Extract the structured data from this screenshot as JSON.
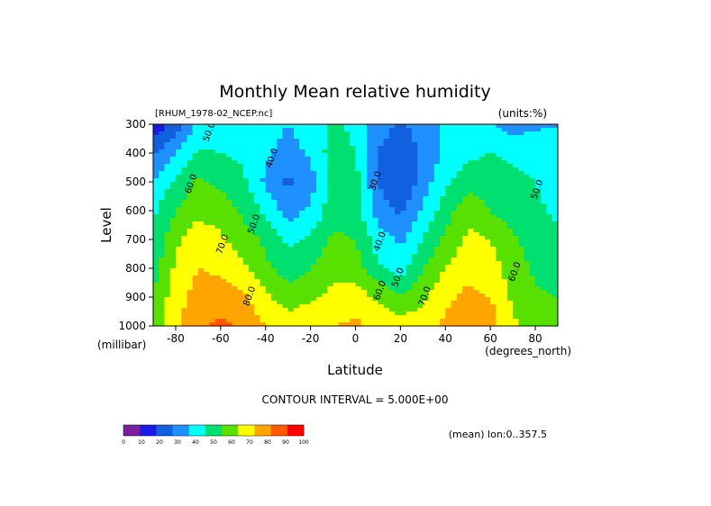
{
  "chart_data": {
    "type": "heatmap",
    "title": "Monthly Mean relative humidity",
    "dataset_label": "[RHUM_1978-02_NCEP.nc]",
    "units_label": "(units:%)",
    "xlabel": "Latitude",
    "x_units": "(degrees_north)",
    "ylabel": "Level",
    "y_units": "(millibar)",
    "xlim": [
      -90,
      90
    ],
    "ylim": [
      1000,
      300
    ],
    "x_ticks": [
      -80,
      -60,
      -40,
      -20,
      0,
      20,
      40,
      60,
      80
    ],
    "y_ticks": [
      300,
      400,
      500,
      600,
      700,
      800,
      900,
      1000
    ],
    "contour_interval_label": "CONTOUR INTERVAL = 5.000E+00",
    "footer_label": "(mean) lon:0..357.5",
    "colorbar": {
      "levels": [
        0,
        10,
        20,
        30,
        40,
        50,
        60,
        70,
        80,
        90,
        100
      ],
      "colors": [
        "#7b1fa2",
        "#1a1ae6",
        "#1060e0",
        "#1e90ff",
        "#00ffff",
        "#00e070",
        "#58e000",
        "#ffff00",
        "#ffa500",
        "#ff5a00",
        "#ff0000"
      ]
    },
    "lat": [
      -90,
      -80,
      -70,
      -60,
      -50,
      -40,
      -30,
      -20,
      -10,
      0,
      10,
      20,
      30,
      40,
      50,
      60,
      70,
      80,
      90
    ],
    "levels": [
      300,
      400,
      500,
      600,
      700,
      800,
      900,
      1000
    ],
    "values": [
      [
        12,
        25,
        42,
        45,
        48,
        45,
        40,
        45,
        52,
        48,
        35,
        28,
        35,
        42,
        45,
        40,
        35,
        38,
        40
      ],
      [
        28,
        40,
        52,
        50,
        48,
        42,
        35,
        42,
        55,
        50,
        30,
        22,
        32,
        42,
        48,
        50,
        48,
        48,
        42
      ],
      [
        40,
        52,
        62,
        58,
        52,
        38,
        28,
        35,
        55,
        55,
        30,
        20,
        35,
        48,
        55,
        55,
        52,
        50,
        45
      ],
      [
        48,
        60,
        68,
        65,
        58,
        48,
        35,
        42,
        56,
        55,
        35,
        28,
        42,
        55,
        68,
        60,
        55,
        52,
        48
      ],
      [
        52,
        68,
        75,
        72,
        65,
        58,
        48,
        52,
        62,
        60,
        45,
        38,
        50,
        62,
        72,
        70,
        62,
        55,
        52
      ],
      [
        55,
        72,
        80,
        78,
        72,
        62,
        55,
        60,
        68,
        65,
        52,
        45,
        60,
        70,
        78,
        75,
        65,
        58,
        55
      ],
      [
        62,
        75,
        85,
        85,
        82,
        72,
        65,
        68,
        72,
        75,
        68,
        62,
        68,
        78,
        82,
        80,
        68,
        62,
        60
      ],
      [
        65,
        78,
        88,
        92,
        88,
        80,
        75,
        78,
        80,
        82,
        78,
        75,
        75,
        82,
        88,
        85,
        72,
        65,
        62
      ]
    ],
    "contour_labels": [
      {
        "lat": -64,
        "level": 330,
        "text": "50.0"
      },
      {
        "lat": -72,
        "level": 510,
        "text": "60.0"
      },
      {
        "lat": -36,
        "level": 420,
        "text": "40.0"
      },
      {
        "lat": -44,
        "level": 650,
        "text": "50.0"
      },
      {
        "lat": -58,
        "level": 720,
        "text": "70.0"
      },
      {
        "lat": -46,
        "level": 900,
        "text": "80.0"
      },
      {
        "lat": 10,
        "level": 500,
        "text": "30.0"
      },
      {
        "lat": 12,
        "level": 710,
        "text": "40.0"
      },
      {
        "lat": 20,
        "level": 835,
        "text": "50.0"
      },
      {
        "lat": 12,
        "level": 880,
        "text": "60.0"
      },
      {
        "lat": 32,
        "level": 900,
        "text": "70.0"
      },
      {
        "lat": 72,
        "level": 815,
        "text": "60.0"
      },
      {
        "lat": 82,
        "level": 530,
        "text": "50.0"
      }
    ]
  }
}
